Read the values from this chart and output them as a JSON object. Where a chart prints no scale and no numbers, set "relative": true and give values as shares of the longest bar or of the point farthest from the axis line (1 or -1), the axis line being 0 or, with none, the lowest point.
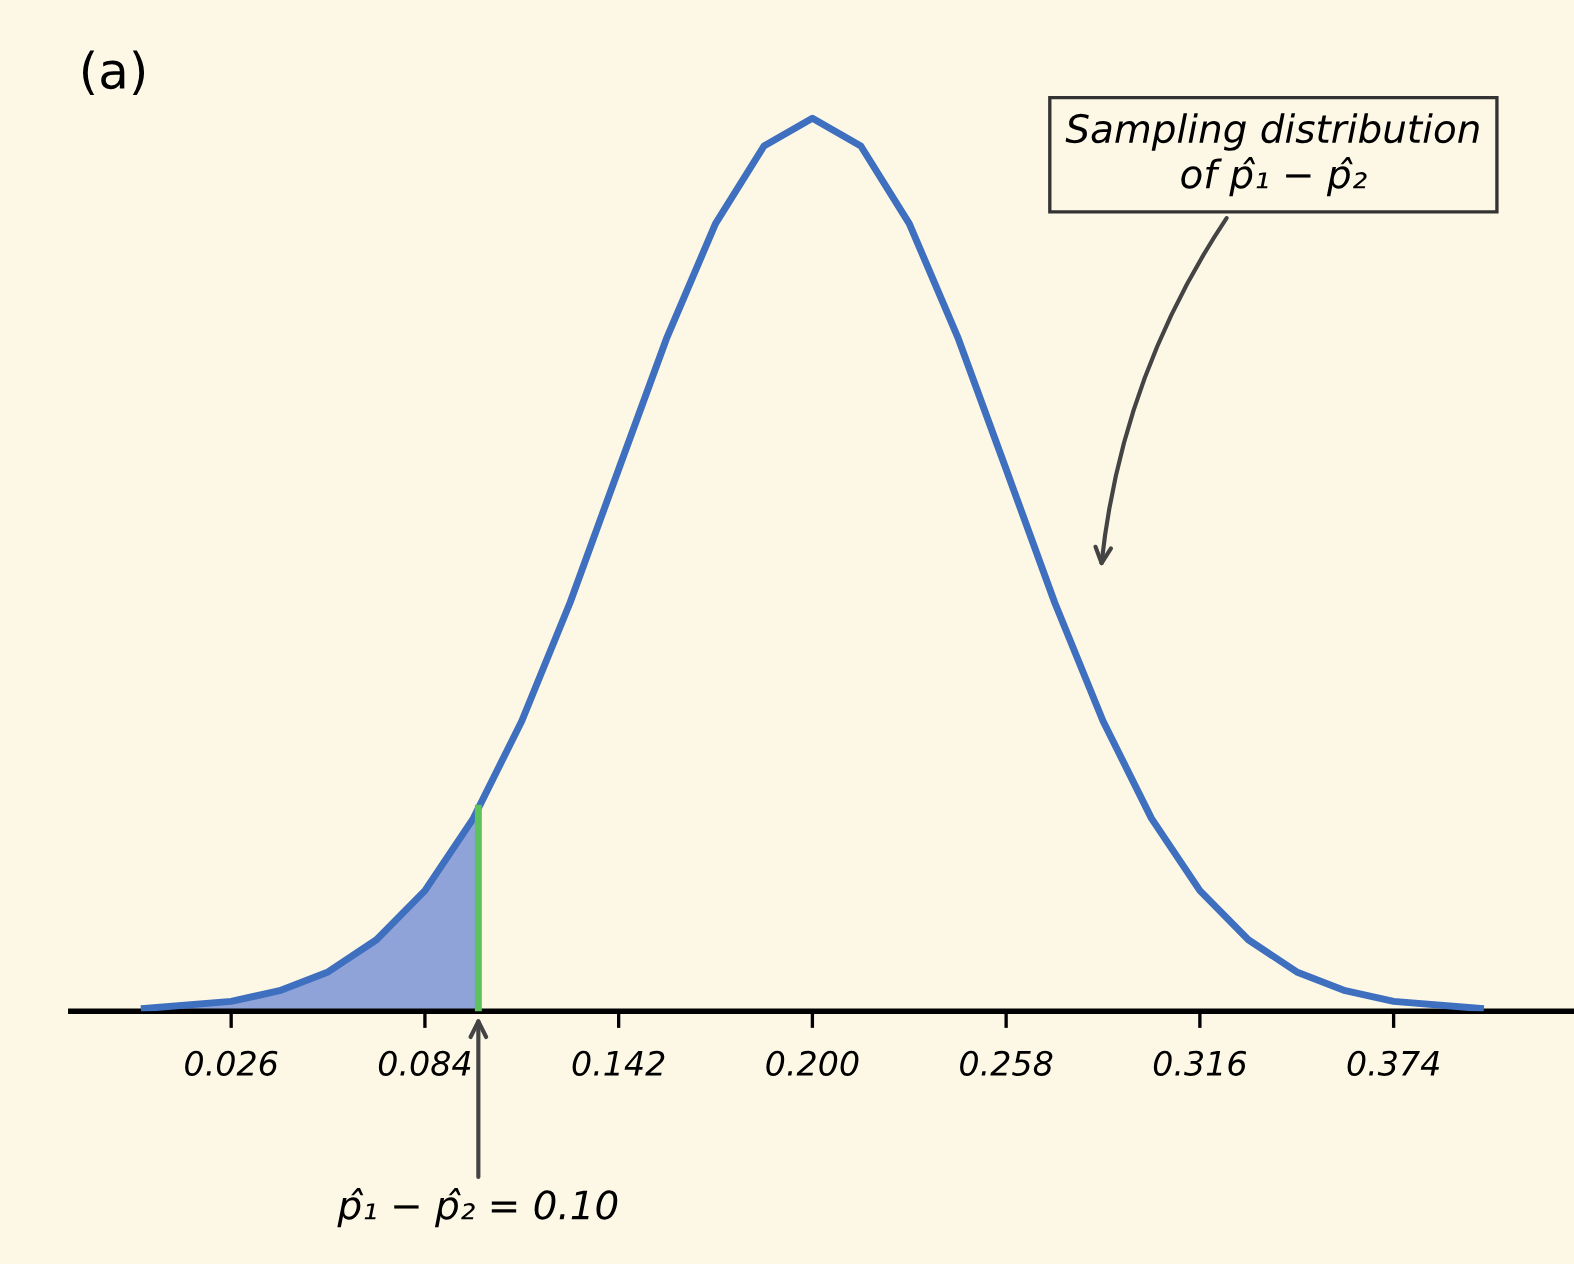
{
  "chart_data": {
    "type": "line",
    "relative": true,
    "tick_labels": "x",
    "grid": false,
    "legend": false,
    "marker": "none",
    "line_style": "solid",
    "xlim": [
      -0.022,
      0.428
    ],
    "xticks": [
      {
        "value": 0.026,
        "label": "0.026"
      },
      {
        "value": 0.084,
        "label": "0.084"
      },
      {
        "value": 0.142,
        "label": "0.142"
      },
      {
        "value": 0.2,
        "label": "0.200"
      },
      {
        "value": 0.258,
        "label": "0.258"
      },
      {
        "value": 0.316,
        "label": "0.316"
      },
      {
        "value": 0.374,
        "label": "0.374"
      }
    ],
    "series": [
      {
        "type": "area",
        "color": "#8fa3d9",
        "x": [
          0.0,
          0.026,
          0.0405,
          0.055,
          0.0695,
          0.084,
          0.0985,
          0.1
        ],
        "values": [
          0.003,
          0.011,
          0.023,
          0.044,
          0.08,
          0.135,
          0.216,
          0.226
        ]
      },
      {
        "color": "#3f6fbf",
        "x": [
          0.0,
          0.026,
          0.0405,
          0.055,
          0.0695,
          0.084,
          0.0985,
          0.113,
          0.1275,
          0.142,
          0.1565,
          0.171,
          0.1855,
          0.2,
          0.2145,
          0.229,
          0.2435,
          0.258,
          0.2725,
          0.287,
          0.3015,
          0.316,
          0.3305,
          0.345,
          0.3595,
          0.374,
          0.4
        ],
        "values": [
          0.003,
          0.011,
          0.023,
          0.044,
          0.08,
          0.135,
          0.216,
          0.325,
          0.458,
          0.607,
          0.755,
          0.882,
          0.969,
          1.0,
          0.969,
          0.882,
          0.755,
          0.607,
          0.458,
          0.325,
          0.216,
          0.135,
          0.08,
          0.044,
          0.023,
          0.011,
          0.003
        ]
      }
    ],
    "ref_lines": [
      {
        "axis": "x",
        "value": 0.1,
        "color": "#5cc35c"
      }
    ],
    "annotations": [
      "(a)",
      "Sampling distribution\nof p̂₁ − p̂₂",
      "p̂₁ − p̂₂ = 0.10"
    ]
  }
}
